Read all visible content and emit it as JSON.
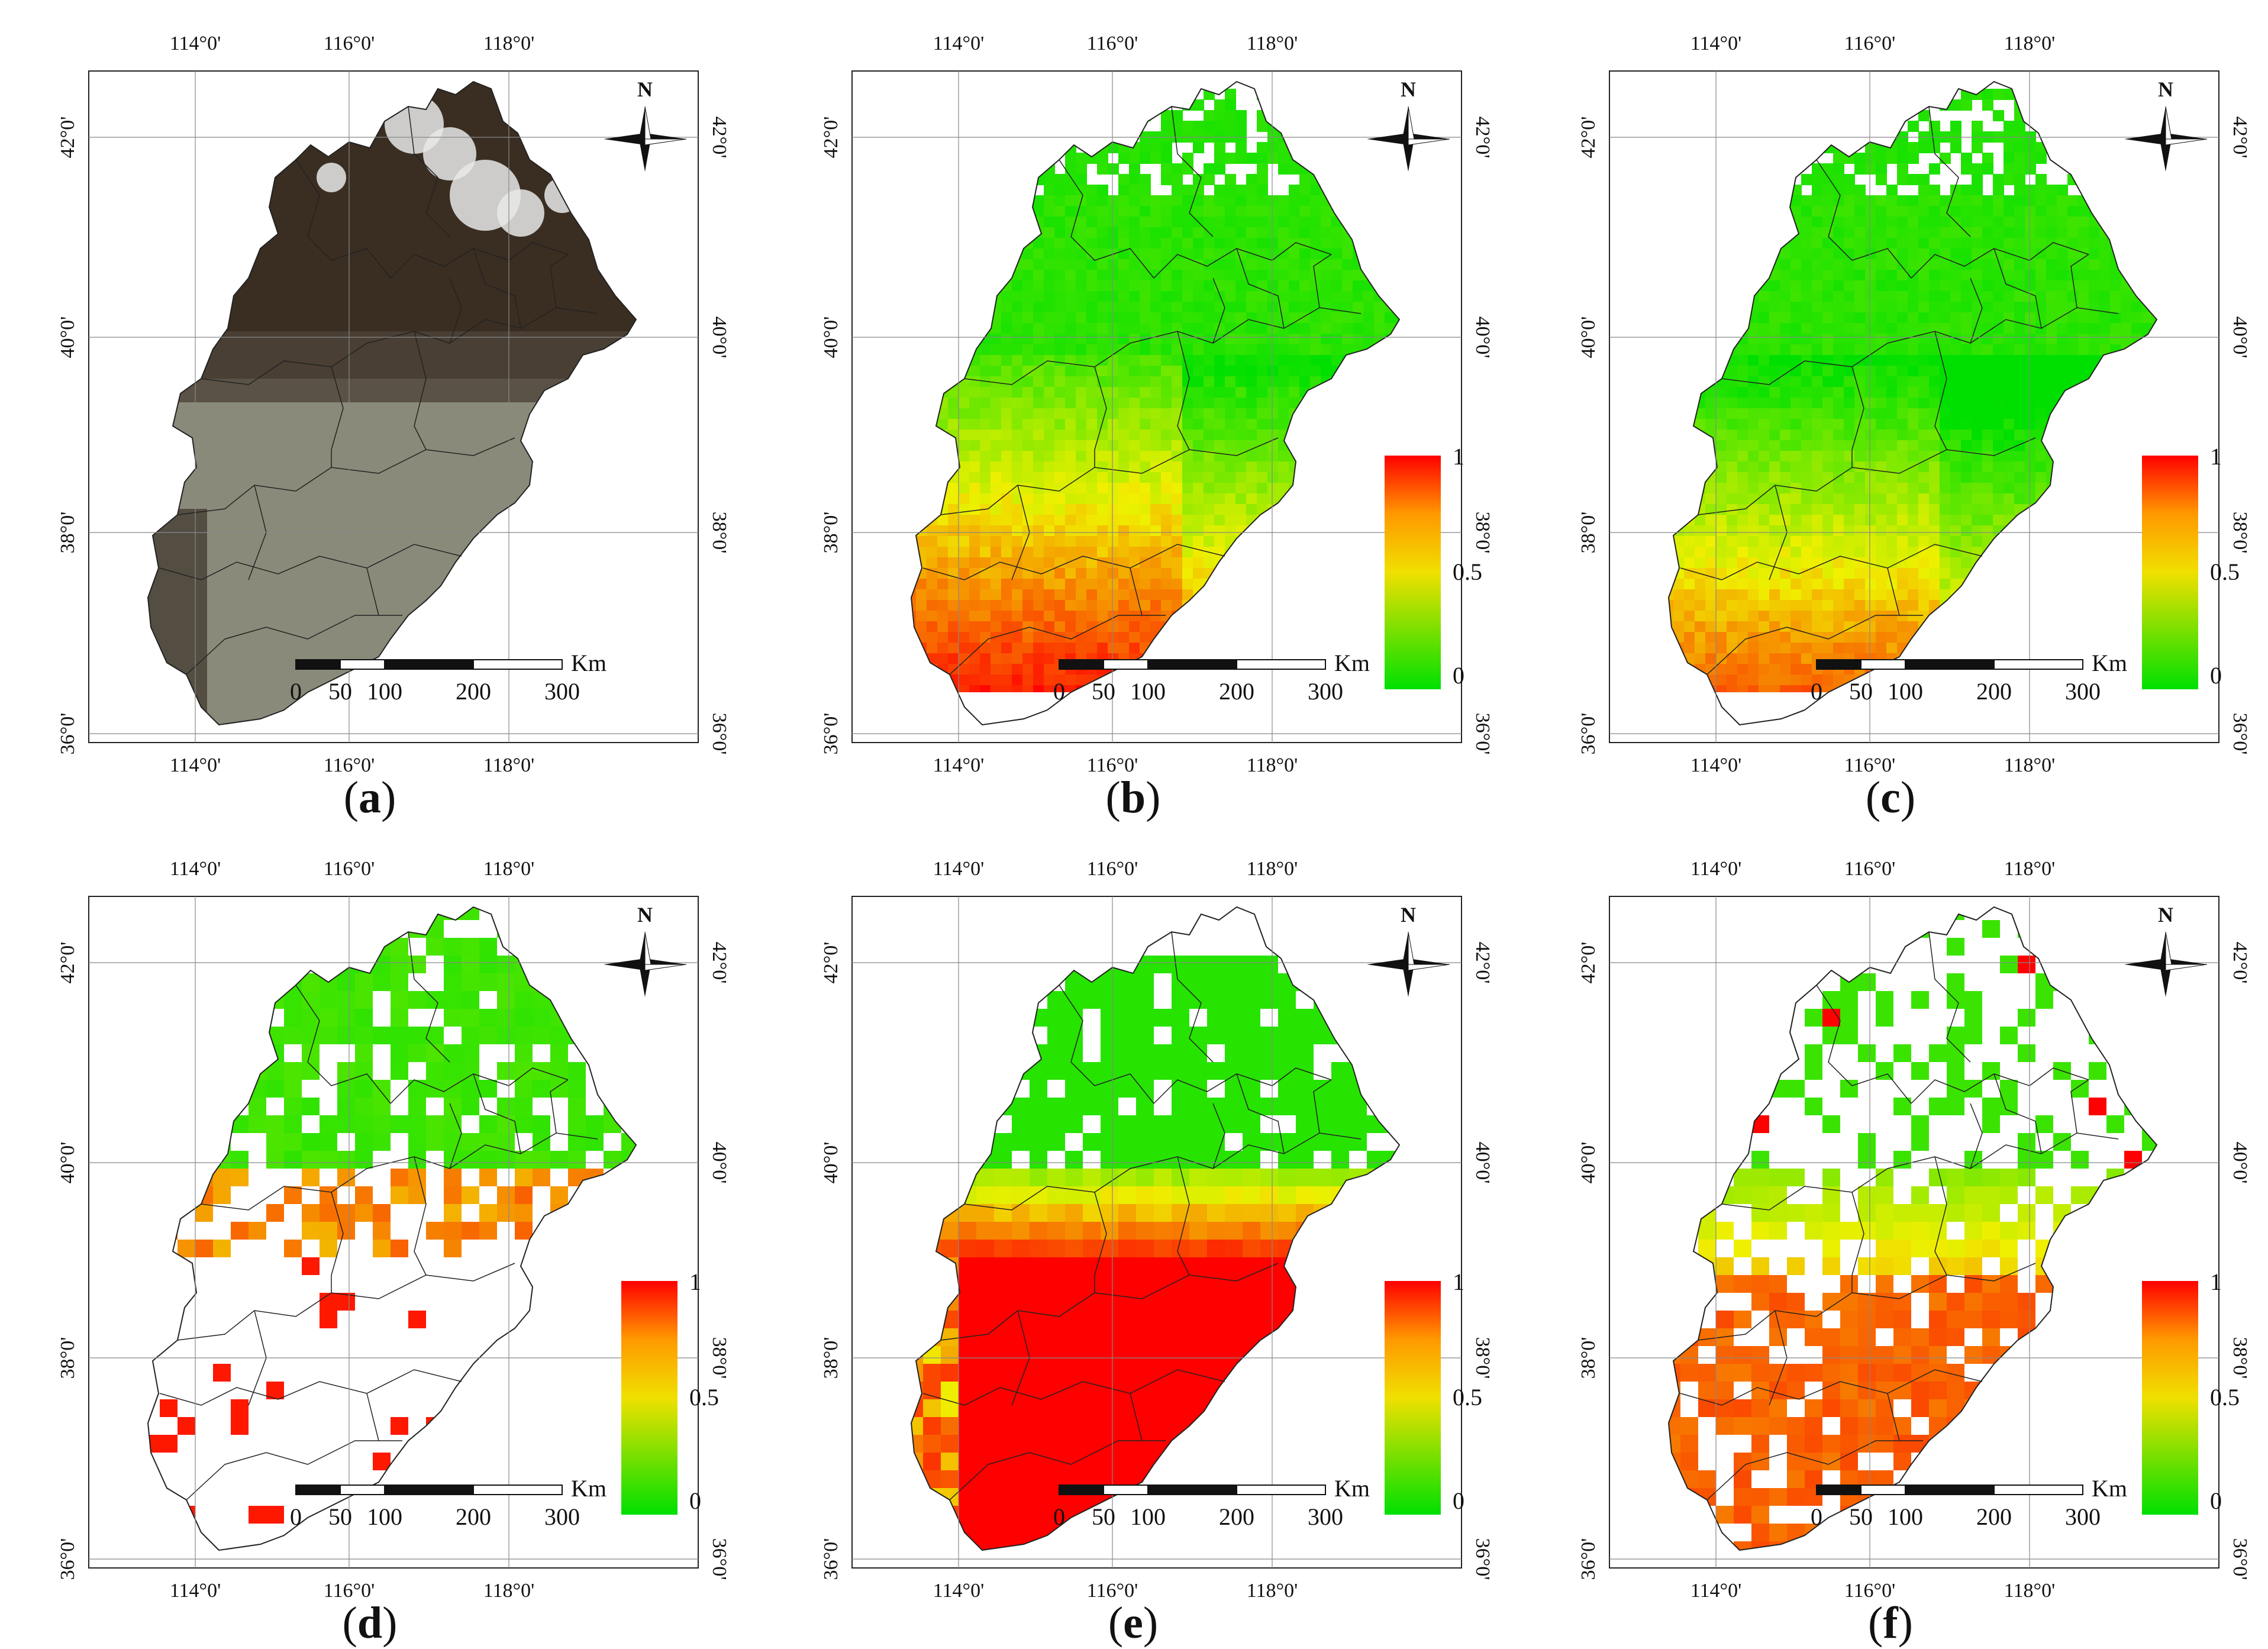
{
  "figure": {
    "panels": [
      {
        "id": "a",
        "letter": "a",
        "type": "true-color composite"
      },
      {
        "id": "b",
        "letter": "b",
        "type": "continuous"
      },
      {
        "id": "c",
        "letter": "c",
        "type": "continuous"
      },
      {
        "id": "d",
        "letter": "d",
        "type": "gridded"
      },
      {
        "id": "e",
        "letter": "e",
        "type": "gridded"
      },
      {
        "id": "f",
        "letter": "f",
        "type": "gridded"
      }
    ],
    "lon_labels": [
      "114°0'",
      "116°0'",
      "118°0'"
    ],
    "lat_labels": [
      "42°0'",
      "40°0'",
      "38°0'",
      "36°0'"
    ],
    "north_label": "N",
    "scale_bar": {
      "ticks": [
        "0",
        "50",
        "100",
        "200",
        "300"
      ],
      "unit": "Km"
    },
    "legend": {
      "max": "1",
      "mid": "0.5",
      "min": "0"
    },
    "colors": {
      "low": "#00e000",
      "mid": "#f0e000",
      "high": "#ff0000",
      "orange": "#ff9900",
      "rgb_dark": "#3a2e22",
      "rgb_plain": "#8a8a7a",
      "cloud": "#e8e8e8"
    },
    "paren_open": "(",
    "paren_close": ")"
  }
}
